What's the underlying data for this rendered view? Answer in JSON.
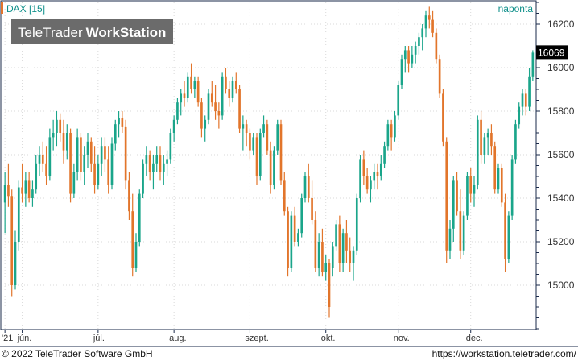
{
  "colors": {
    "up": "#1aa58a",
    "down": "#e2752b",
    "frame": "#1a2a4a",
    "teal_text": "#0e8f8a",
    "logo_bg": "#6b6b6b",
    "price_tag_bg": "#000000"
  },
  "header": {
    "instrument": "DAX [15]",
    "period": "naponta"
  },
  "logo": {
    "part1": "TeleTrader",
    "part2": "WorkStation"
  },
  "footer": {
    "copyright": "© 2022 TeleTrader Software GmbH",
    "url": "https://workstation.teletrader.com/"
  },
  "chart_data": {
    "type": "candlestick",
    "title": "DAX [15]",
    "period": "naponta",
    "ylim": [
      14800,
      16300
    ],
    "y_ticks": [
      15000,
      15200,
      15400,
      15600,
      15800,
      16000,
      16200
    ],
    "last_value_label": "16069",
    "x_ticks": [
      {
        "label": "'21",
        "index": 0
      },
      {
        "label": "jún.",
        "index": 5
      },
      {
        "label": "júl.",
        "index": 27
      },
      {
        "label": "aug.",
        "index": 49
      },
      {
        "label": "szept.",
        "index": 71
      },
      {
        "label": "okt.",
        "index": 93
      },
      {
        "label": "nov.",
        "index": 114
      },
      {
        "label": "dec.",
        "index": 135
      }
    ],
    "candles": [
      [
        15380,
        15520,
        15240,
        15460
      ],
      [
        15460,
        15560,
        15360,
        15410
      ],
      [
        15410,
        15440,
        14950,
        15000
      ],
      [
        15000,
        15250,
        14980,
        15200
      ],
      [
        15200,
        15480,
        15160,
        15450
      ],
      [
        15450,
        15560,
        15380,
        15420
      ],
      [
        15420,
        15520,
        15360,
        15480
      ],
      [
        15480,
        15520,
        15380,
        15400
      ],
      [
        15400,
        15480,
        15360,
        15440
      ],
      [
        15440,
        15600,
        15420,
        15560
      ],
      [
        15560,
        15640,
        15500,
        15600
      ],
      [
        15600,
        15660,
        15520,
        15560
      ],
      [
        15560,
        15640,
        15460,
        15500
      ],
      [
        15500,
        15720,
        15480,
        15680
      ],
      [
        15680,
        15760,
        15620,
        15700
      ],
      [
        15700,
        15800,
        15640,
        15760
      ],
      [
        15760,
        15790,
        15660,
        15700
      ],
      [
        15700,
        15760,
        15560,
        15620
      ],
      [
        15620,
        15740,
        15580,
        15700
      ],
      [
        15700,
        15720,
        15380,
        15420
      ],
      [
        15420,
        15560,
        15400,
        15520
      ],
      [
        15520,
        15720,
        15480,
        15680
      ],
      [
        15680,
        15700,
        15480,
        15520
      ],
      [
        15520,
        15640,
        15460,
        15600
      ],
      [
        15600,
        15700,
        15540,
        15660
      ],
      [
        15660,
        15680,
        15520,
        15560
      ],
      [
        15560,
        15640,
        15420,
        15460
      ],
      [
        15460,
        15600,
        15440,
        15560
      ],
      [
        15560,
        15680,
        15500,
        15640
      ],
      [
        15640,
        15680,
        15520,
        15580
      ],
      [
        15580,
        15640,
        15420,
        15460
      ],
      [
        15460,
        15680,
        15440,
        15650
      ],
      [
        15650,
        15760,
        15620,
        15740
      ],
      [
        15740,
        15800,
        15680,
        15770
      ],
      [
        15770,
        15800,
        15700,
        15730
      ],
      [
        15730,
        15760,
        15440,
        15480
      ],
      [
        15480,
        15520,
        15300,
        15340
      ],
      [
        15340,
        15420,
        15040,
        15080
      ],
      [
        15080,
        15240,
        15060,
        15200
      ],
      [
        15200,
        15440,
        15180,
        15420
      ],
      [
        15420,
        15580,
        15400,
        15560
      ],
      [
        15560,
        15640,
        15500,
        15600
      ],
      [
        15600,
        15620,
        15480,
        15520
      ],
      [
        15520,
        15600,
        15440,
        15560
      ],
      [
        15560,
        15640,
        15520,
        15600
      ],
      [
        15600,
        15640,
        15480,
        15520
      ],
      [
        15520,
        15600,
        15460,
        15560
      ],
      [
        15560,
        15620,
        15500,
        15580
      ],
      [
        15580,
        15720,
        15560,
        15700
      ],
      [
        15700,
        15780,
        15660,
        15760
      ],
      [
        15760,
        15860,
        15740,
        15840
      ],
      [
        15840,
        15900,
        15780,
        15880
      ],
      [
        15880,
        15940,
        15820,
        15860
      ],
      [
        15860,
        15980,
        15840,
        15960
      ],
      [
        15960,
        16020,
        15880,
        15900
      ],
      [
        15900,
        15960,
        15860,
        15940
      ],
      [
        15940,
        15960,
        15820,
        15840
      ],
      [
        15840,
        15860,
        15680,
        15720
      ],
      [
        15720,
        15780,
        15660,
        15760
      ],
      [
        15760,
        15900,
        15740,
        15880
      ],
      [
        15880,
        15940,
        15820,
        15840
      ],
      [
        15840,
        15920,
        15760,
        15800
      ],
      [
        15800,
        15840,
        15720,
        15780
      ],
      [
        15780,
        15980,
        15760,
        15960
      ],
      [
        15960,
        16000,
        15880,
        15900
      ],
      [
        15900,
        15940,
        15820,
        15860
      ],
      [
        15860,
        15960,
        15840,
        15940
      ],
      [
        15940,
        15980,
        15880,
        15900
      ],
      [
        15900,
        15920,
        15700,
        15720
      ],
      [
        15720,
        15780,
        15620,
        15740
      ],
      [
        15740,
        15760,
        15640,
        15700
      ],
      [
        15700,
        15720,
        15580,
        15620
      ],
      [
        15620,
        15700,
        15600,
        15680
      ],
      [
        15680,
        15700,
        15460,
        15500
      ],
      [
        15500,
        15720,
        15480,
        15700
      ],
      [
        15700,
        15780,
        15680,
        15740
      ],
      [
        15740,
        15760,
        15600,
        15620
      ],
      [
        15620,
        15660,
        15420,
        15460
      ],
      [
        15460,
        15640,
        15440,
        15620
      ],
      [
        15620,
        15760,
        15600,
        15740
      ],
      [
        15740,
        15760,
        15460,
        15480
      ],
      [
        15480,
        15520,
        15320,
        15340
      ],
      [
        15340,
        15360,
        15040,
        15080
      ],
      [
        15080,
        15340,
        15060,
        15320
      ],
      [
        15320,
        15360,
        15180,
        15200
      ],
      [
        15200,
        15260,
        15180,
        15240
      ],
      [
        15240,
        15420,
        15220,
        15400
      ],
      [
        15400,
        15520,
        15380,
        15500
      ],
      [
        15500,
        15560,
        15380,
        15400
      ],
      [
        15400,
        15480,
        15280,
        15300
      ],
      [
        15300,
        15340,
        15060,
        15080
      ],
      [
        15080,
        15240,
        15040,
        15200
      ],
      [
        15200,
        15260,
        15040,
        15060
      ],
      [
        15060,
        15140,
        15020,
        15100
      ],
      [
        15100,
        15120,
        14850,
        14900
      ],
      [
        15080,
        15200,
        15040,
        15180
      ],
      [
        15180,
        15300,
        15160,
        15280
      ],
      [
        15280,
        15320,
        15060,
        15100
      ],
      [
        15100,
        15260,
        15060,
        15240
      ],
      [
        15240,
        15300,
        15100,
        15160
      ],
      [
        15160,
        15220,
        15060,
        15100
      ],
      [
        15100,
        15180,
        15020,
        15160
      ],
      [
        15160,
        15420,
        15140,
        15400
      ],
      [
        15400,
        15600,
        15380,
        15580
      ],
      [
        15580,
        15620,
        15460,
        15500
      ],
      [
        15500,
        15540,
        15420,
        15440
      ],
      [
        15440,
        15500,
        15380,
        15480
      ],
      [
        15480,
        15560,
        15440,
        15520
      ],
      [
        15520,
        15560,
        15440,
        15500
      ],
      [
        15500,
        15600,
        15480,
        15560
      ],
      [
        15560,
        15660,
        15540,
        15640
      ],
      [
        15640,
        15760,
        15620,
        15740
      ],
      [
        15740,
        15760,
        15620,
        15680
      ],
      [
        15680,
        15800,
        15660,
        15780
      ],
      [
        15780,
        15940,
        15760,
        15920
      ],
      [
        15920,
        16060,
        15900,
        16040
      ],
      [
        16040,
        16100,
        15980,
        16080
      ],
      [
        16080,
        16100,
        15980,
        16020
      ],
      [
        16020,
        16100,
        16000,
        16060
      ],
      [
        16060,
        16120,
        16020,
        16100
      ],
      [
        16100,
        16160,
        16060,
        16140
      ],
      [
        16140,
        16200,
        16080,
        16180
      ],
      [
        16180,
        16260,
        16140,
        16240
      ],
      [
        16240,
        16280,
        16180,
        16220
      ],
      [
        16220,
        16260,
        16140,
        16160
      ],
      [
        16160,
        16180,
        16020,
        16040
      ],
      [
        16040,
        16060,
        15860,
        15880
      ],
      [
        15880,
        15900,
        15640,
        15660
      ],
      [
        15660,
        15680,
        15100,
        15160
      ],
      [
        15160,
        15300,
        15120,
        15260
      ],
      [
        15260,
        15500,
        15200,
        15480
      ],
      [
        15480,
        15520,
        15320,
        15340
      ],
      [
        15340,
        15440,
        15120,
        15160
      ],
      [
        15160,
        15340,
        15140,
        15320
      ],
      [
        15320,
        15520,
        15300,
        15500
      ],
      [
        15500,
        15540,
        15380,
        15420
      ],
      [
        15420,
        15500,
        15360,
        15460
      ],
      [
        15460,
        15780,
        15440,
        15760
      ],
      [
        15760,
        15800,
        15560,
        15600
      ],
      [
        15600,
        15700,
        15560,
        15680
      ],
      [
        15680,
        15720,
        15600,
        15700
      ],
      [
        15700,
        15740,
        15600,
        15640
      ],
      [
        15640,
        15660,
        15420,
        15440
      ],
      [
        15440,
        15560,
        15420,
        15540
      ],
      [
        15540,
        15560,
        15360,
        15380
      ],
      [
        15380,
        15420,
        15060,
        15120
      ],
      [
        15120,
        15340,
        15100,
        15320
      ],
      [
        15320,
        15600,
        15300,
        15580
      ],
      [
        15580,
        15760,
        15560,
        15740
      ],
      [
        15740,
        15840,
        15720,
        15820
      ],
      [
        15820,
        15900,
        15780,
        15880
      ],
      [
        15880,
        15900,
        15780,
        15820
      ],
      [
        15820,
        16000,
        15800,
        15960
      ],
      [
        15960,
        16080,
        15940,
        16069
      ]
    ]
  }
}
